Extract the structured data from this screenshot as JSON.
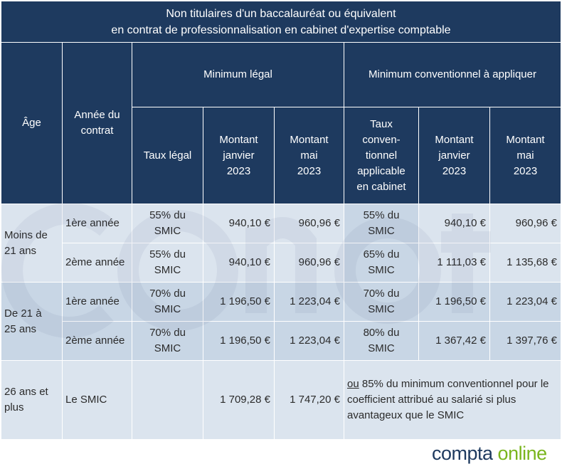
{
  "table": {
    "title_line1": "Non titulaires d'un baccalauréat ou équivalent",
    "title_line2": "en contrat de professionnalisation en cabinet d'expertise comptable",
    "headers": {
      "age": "Âge",
      "annee": "Année du contrat",
      "minimum_legal": "Minimum légal",
      "minimum_conventionnel": "Minimum conventionnel à appliquer",
      "taux_legal": "Taux légal",
      "montant_janvier": "Montant janvier 2023",
      "montant_mai": "Montant mai 2023",
      "taux_conventionnel": "Taux conven-tionnel applicable en cabinet"
    },
    "groups": [
      {
        "age": "Moins de 21 ans",
        "rows": [
          {
            "annee": "1ère année",
            "taux_legal": "55% du SMIC",
            "legal_janvier": "940,10 €",
            "legal_mai": "960,96 €",
            "taux_conv": "55% du SMIC",
            "conv_janvier": "940,10 €",
            "conv_mai": "960,96 €"
          },
          {
            "annee": "2ème année",
            "taux_legal": "55% du SMIC",
            "legal_janvier": "940,10 €",
            "legal_mai": "960,96 €",
            "taux_conv": "65% du SMIC",
            "conv_janvier": "1 111,03 €",
            "conv_mai": "1 135,68 €"
          }
        ]
      },
      {
        "age": "De 21 à 25 ans",
        "rows": [
          {
            "annee": "1ère année",
            "taux_legal": "70% du SMIC",
            "legal_janvier": "1 196,50 €",
            "legal_mai": "1 223,04 €",
            "taux_conv": "70% du SMIC",
            "conv_janvier": "1 196,50 €",
            "conv_mai": "1 223,04 €"
          },
          {
            "annee": "2ème année",
            "taux_legal": "70% du SMIC",
            "legal_janvier": "1 196,50 €",
            "legal_mai": "1 223,04 €",
            "taux_conv": "80% du SMIC",
            "conv_janvier": "1 367,42 €",
            "conv_mai": "1 397,76 €"
          }
        ]
      }
    ],
    "last_row": {
      "age": "26 ans et plus",
      "annee": "Le SMIC",
      "legal_janvier": "1 709,28 €",
      "legal_mai": "1 747,20 €",
      "note_ou": "ou",
      "note_rest": " 85% du minimum conventionnel pour le coefficient attribué au salarié si plus avantageux que le SMIC"
    }
  },
  "logo": {
    "part1": "compta ",
    "part2": "online"
  },
  "colors": {
    "header": "#1e3a5f",
    "row_light": "#dbe4ee",
    "row_dark": "#c8d6e5",
    "logo_green": "#7ab51d"
  }
}
